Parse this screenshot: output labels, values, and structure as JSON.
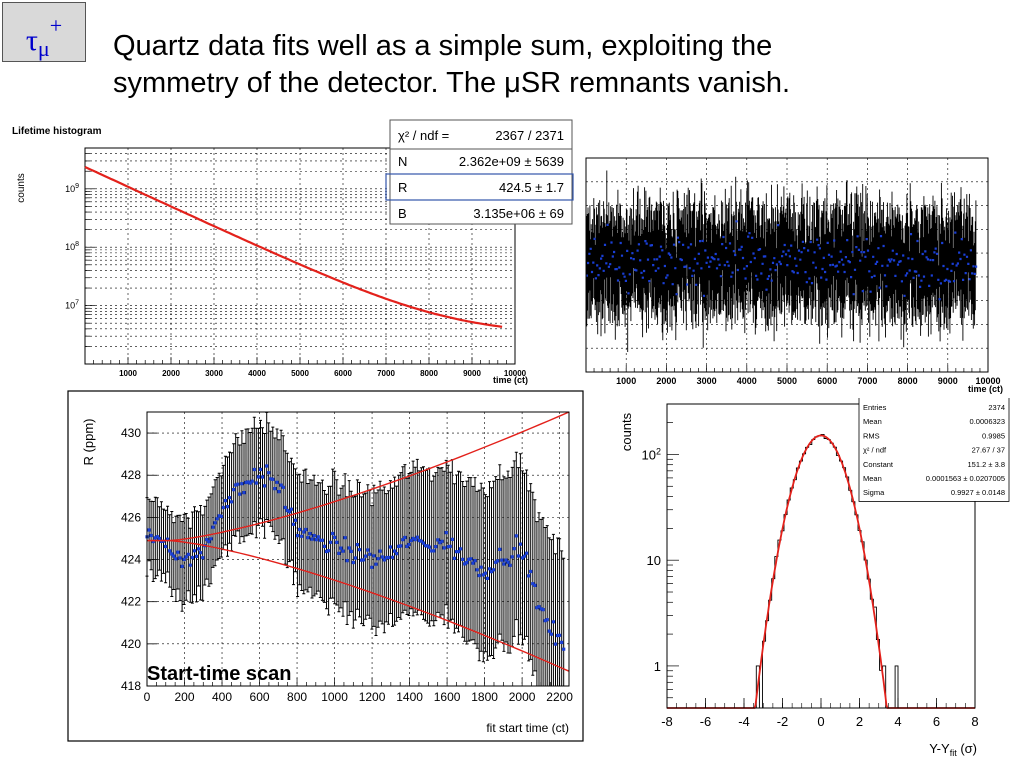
{
  "slide": {
    "tag": {
      "main": "τ",
      "sub": "μ",
      "sup": "+"
    },
    "headline_line1": "Quartz data fits well as a simple sum, exploiting the",
    "headline_line2": "symmetry of the detector. The μSR remnants vanish."
  },
  "chart_data": [
    {
      "type": "line",
      "panel": "lifetime",
      "title": "Lifetime histogram",
      "xlabel": "time (ct)",
      "ylabel": "counts",
      "log_y": true,
      "xlim": [
        0,
        10000
      ],
      "ylim": [
        1000000,
        5000000000
      ],
      "x_ticks": [
        "1000",
        "2000",
        "3000",
        "4000",
        "5000",
        "6000",
        "7000",
        "8000",
        "9000",
        "10000"
      ],
      "y_ticks": [
        {
          "value": 10000000,
          "base": "10",
          "exp": "7"
        },
        {
          "value": 100000000,
          "base": "10",
          "exp": "8"
        },
        {
          "value": 1000000000,
          "base": "10",
          "exp": "9"
        }
      ],
      "grid": true,
      "fit_color": "#e3211b",
      "fit": {
        "N": 2362000000,
        "lifetime": 1280,
        "B": 3135000
      },
      "x_end": 9700,
      "stats": {
        "header_label": "χ² / ndf =",
        "header_value": "2367 / 2371",
        "rows": [
          {
            "label": "N",
            "value": "2.362e+09 ± 5639"
          },
          {
            "label": "R",
            "value": "424.5 ± 1.7"
          },
          {
            "label": "B",
            "value": "3.135e+06 ± 69"
          }
        ]
      }
    },
    {
      "type": "scatter",
      "panel": "residuals",
      "xlabel": "time (ct)",
      "xlim": [
        0,
        10000
      ],
      "x_ticks": [
        "1000",
        "2000",
        "3000",
        "4000",
        "5000",
        "6000",
        "7000",
        "8000",
        "9000",
        "10000"
      ],
      "grid": true,
      "point_color": "#1a3fd6",
      "bar_color": "#000000",
      "x_start": 0,
      "x_end": 9700,
      "n_points": 600
    },
    {
      "type": "scatter",
      "panel": "start-time-scan",
      "label": "Start-time scan",
      "xlabel": "fit start time (ct)",
      "ylabel": "R (ppm)",
      "xlim": [
        0,
        2250
      ],
      "ylim": [
        418,
        431
      ],
      "x_ticks": [
        "0",
        "200",
        "400",
        "600",
        "800",
        "1000",
        "1200",
        "1400",
        "1600",
        "1800",
        "2000",
        "2200"
      ],
      "y_ticks": [
        "418",
        "420",
        "422",
        "424",
        "426",
        "428",
        "430"
      ],
      "grid": true,
      "point_color": "#1a3fd6",
      "band_color": "#e3211b",
      "band_center": 424.9,
      "band_pivot_x": 120,
      "band_upper_end": 431.0,
      "band_lower_end": 418.7,
      "series": [
        {
          "x": [
            0,
            100,
            200,
            300,
            400,
            500,
            600,
            700,
            800,
            900,
            1000,
            1100,
            1200,
            1300,
            1400,
            1500,
            1600,
            1700,
            1800,
            1900,
            2000,
            2100,
            2200
          ],
          "values": [
            425.2,
            424.8,
            424.0,
            424.3,
            426.5,
            427.5,
            428.1,
            427.5,
            425.5,
            424.8,
            424.7,
            424.3,
            424.0,
            424.2,
            424.9,
            424.7,
            424.8,
            424.0,
            423.5,
            424.2,
            424.5,
            421.5,
            420.0
          ]
        }
      ]
    },
    {
      "type": "line",
      "panel": "pull-distribution",
      "xlabel_main": "Y-Y",
      "xlabel_sub": "fit",
      "xlabel_tail": " (σ)",
      "ylabel": "counts",
      "log_y": true,
      "xlim": [
        -8,
        8
      ],
      "ylim": [
        0.4,
        300
      ],
      "x_ticks": [
        "-8",
        "-6",
        "-4",
        "-2",
        "0",
        "2",
        "4",
        "6",
        "8"
      ],
      "y_ticks": [
        {
          "value": 1,
          "base": "1",
          "exp": ""
        },
        {
          "value": 10,
          "base": "10",
          "exp": ""
        },
        {
          "value": 100,
          "base": "10",
          "exp": "2"
        }
      ],
      "fit_color": "#e3211b",
      "gauss": {
        "constant": 151.2,
        "mean": 0.0001563,
        "sigma": 0.9927
      },
      "stats": [
        {
          "label": "Entries",
          "value": "2374"
        },
        {
          "label": "Mean",
          "value": "0.0006323"
        },
        {
          "label": "RMS",
          "value": "0.9985"
        },
        {
          "label": "χ² / ndf",
          "value": "27.67 / 37"
        },
        {
          "label": "Constant",
          "value": "151.2 ± 3.8"
        },
        {
          "label": "Mean",
          "value": "0.0001563 ± 0.0207005"
        },
        {
          "label": "Sigma",
          "value": "0.9927 ± 0.0148"
        }
      ]
    }
  ]
}
